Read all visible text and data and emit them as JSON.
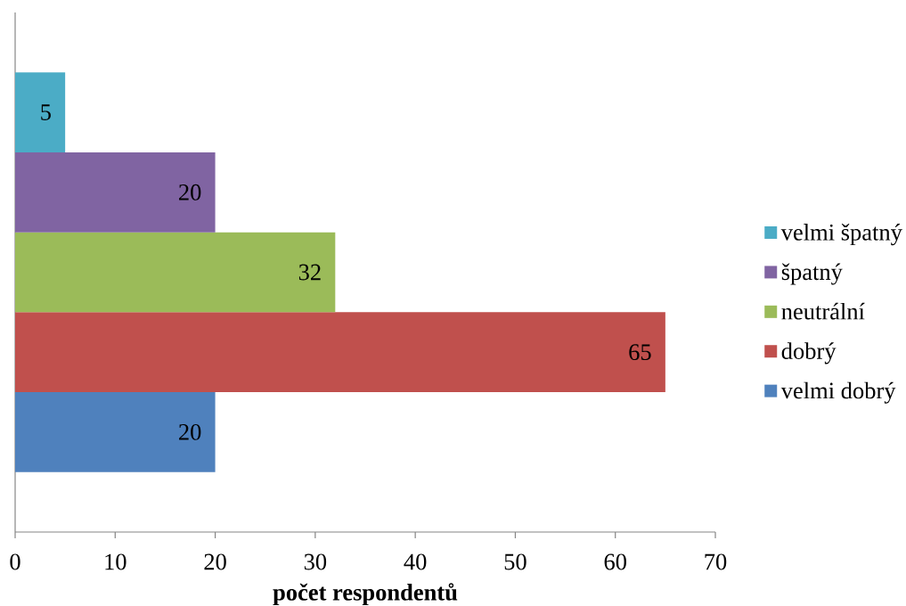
{
  "chart_data": {
    "type": "bar",
    "orientation": "horizontal",
    "categories": [
      null
    ],
    "series": [
      {
        "name": "velmi dobrý",
        "color": "#4f81bd",
        "values": [
          20
        ]
      },
      {
        "name": "dobrý",
        "color": "#c0504d",
        "values": [
          65
        ]
      },
      {
        "name": "neutrální",
        "color": "#9bbb59",
        "values": [
          32
        ]
      },
      {
        "name": "špatný",
        "color": "#8064a2",
        "values": [
          20
        ]
      },
      {
        "name": "velmi špatný",
        "color": "#4bacc6",
        "values": [
          5
        ]
      }
    ],
    "xlabel": "počet respondentů",
    "xlim": [
      0,
      70
    ],
    "xticks": [
      0,
      10,
      20,
      30,
      40,
      50,
      60,
      70
    ],
    "data_labels": true,
    "legend": "right",
    "tick_labels": "x"
  }
}
